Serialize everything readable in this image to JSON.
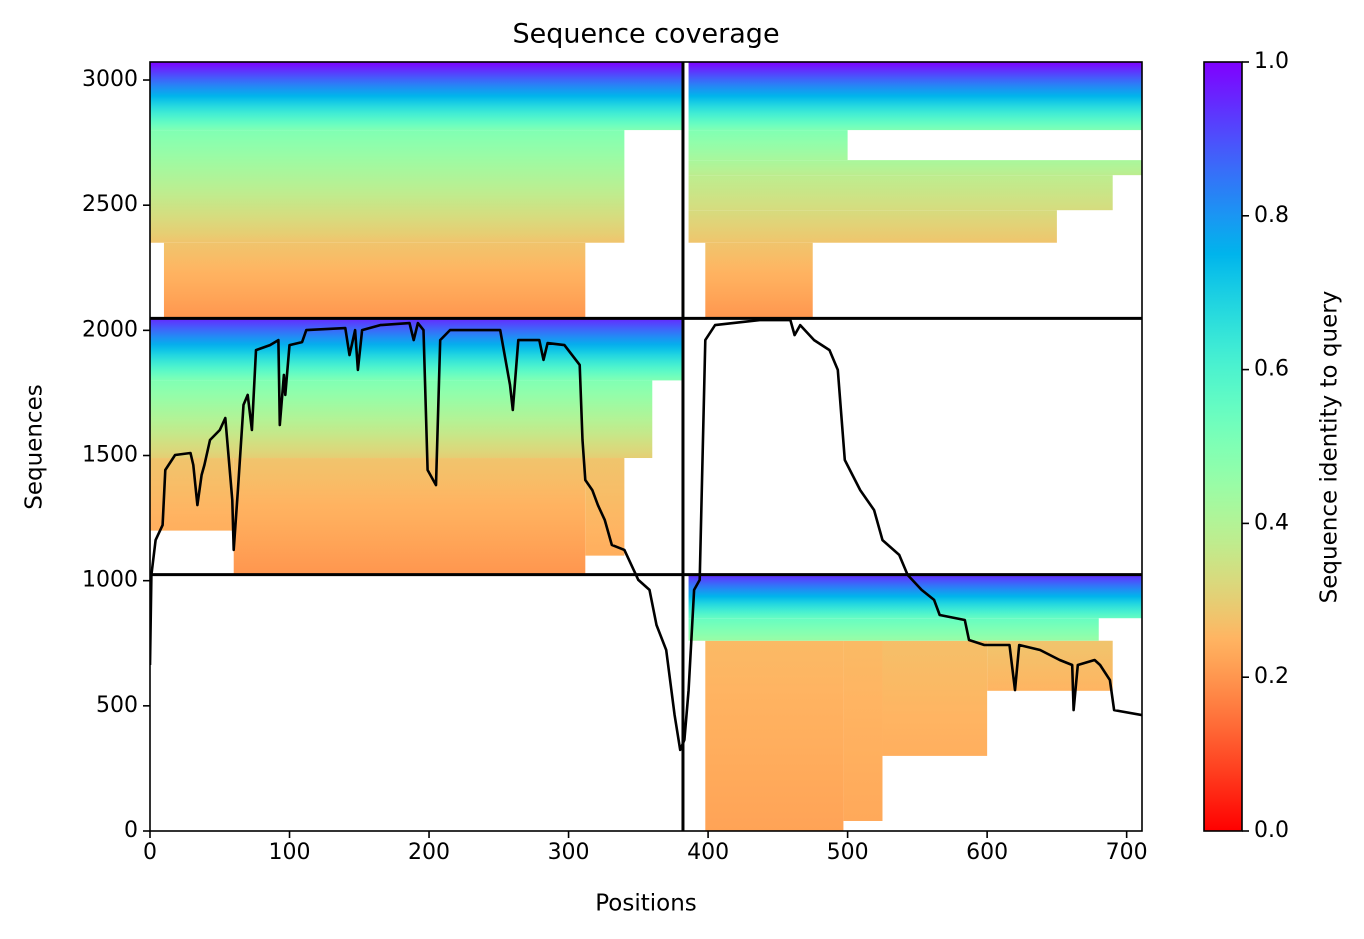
{
  "chart_data": {
    "type": "msa_coverage",
    "title": "Sequence coverage",
    "x_label": "Positions",
    "y_label": "Sequences",
    "xlim": [
      0,
      711
    ],
    "ylim": [
      0,
      3072
    ],
    "xticks": [
      0,
      100,
      200,
      300,
      400,
      500,
      600,
      700
    ],
    "yticks": [
      0,
      500,
      1000,
      1500,
      2000,
      2500,
      3000
    ],
    "colormap": "rainbow_r",
    "colorbar": {
      "label": "Sequence identity to query",
      "lim": [
        0,
        1
      ],
      "ticks": [
        {
          "value": 0,
          "label": "0.0"
        },
        0.2,
        0.4,
        0.6,
        0.8,
        {
          "value": 1,
          "label": "1.0"
        }
      ]
    },
    "separators": {
      "x": [
        382
      ],
      "y": [
        1024,
        2048
      ],
      "color": "#000000"
    },
    "blocks": [
      {
        "x": [
          398,
          497
        ],
        "y": [
          0,
          760
        ],
        "identity": [
          0.22,
          0.26
        ]
      },
      {
        "x": [
          497,
          525
        ],
        "y": [
          40,
          760
        ],
        "identity": [
          0.23,
          0.26
        ]
      },
      {
        "x": [
          525,
          600
        ],
        "y": [
          300,
          760
        ],
        "identity": [
          0.24,
          0.27
        ]
      },
      {
        "x": [
          600,
          690
        ],
        "y": [
          560,
          760
        ],
        "identity": [
          0.25,
          0.28
        ]
      },
      {
        "x": [
          386,
          680
        ],
        "y": [
          760,
          850
        ],
        "identity": [
          0.45,
          0.55
        ]
      },
      {
        "x": [
          386,
          711
        ],
        "y": [
          850,
          1024
        ],
        "identity": [
          0.55,
          0.95
        ]
      },
      {
        "x": [
          60,
          312
        ],
        "y": [
          1024,
          1490
        ],
        "identity": [
          0.2,
          0.28
        ]
      },
      {
        "x": [
          0,
          60
        ],
        "y": [
          1200,
          1490
        ],
        "identity": [
          0.24,
          0.28
        ]
      },
      {
        "x": [
          312,
          340
        ],
        "y": [
          1100,
          1490
        ],
        "identity": [
          0.24,
          0.28
        ]
      },
      {
        "x": [
          0,
          360
        ],
        "y": [
          1490,
          1800
        ],
        "identity": [
          0.3,
          0.5
        ]
      },
      {
        "x": [
          0,
          382
        ],
        "y": [
          1800,
          2048
        ],
        "identity": [
          0.5,
          0.95
        ]
      },
      {
        "x": [
          10,
          312
        ],
        "y": [
          2048,
          2350
        ],
        "identity": [
          0.2,
          0.28
        ]
      },
      {
        "x": [
          0,
          340
        ],
        "y": [
          2350,
          2800
        ],
        "identity": [
          0.28,
          0.5
        ]
      },
      {
        "x": [
          0,
          382
        ],
        "y": [
          2800,
          3072
        ],
        "identity": [
          0.5,
          1
        ]
      },
      {
        "x": [
          398,
          475
        ],
        "y": [
          2048,
          2350
        ],
        "identity": [
          0.2,
          0.28
        ]
      },
      {
        "x": [
          386,
          650
        ],
        "y": [
          2350,
          2480
        ],
        "identity": [
          0.28,
          0.33
        ]
      },
      {
        "x": [
          386,
          690
        ],
        "y": [
          2480,
          2620
        ],
        "identity": [
          0.33,
          0.38
        ]
      },
      {
        "x": [
          386,
          711
        ],
        "y": [
          2620,
          2680
        ],
        "identity": [
          0.38,
          0.42
        ]
      },
      {
        "x": [
          386,
          500
        ],
        "y": [
          2680,
          2800
        ],
        "identity": [
          0.42,
          0.5
        ]
      },
      {
        "x": [
          386,
          711
        ],
        "y": [
          2800,
          3072
        ],
        "identity": [
          0.5,
          1
        ]
      }
    ],
    "line": {
      "color": "#000000",
      "x": [
        0,
        1,
        4,
        9,
        11,
        18,
        29,
        31,
        34,
        37,
        39,
        43,
        50,
        54,
        59,
        60,
        63,
        67,
        70,
        73,
        76,
        86,
        92,
        93,
        96,
        97,
        100,
        109,
        112,
        140,
        143,
        147,
        149,
        152,
        165,
        186,
        189,
        192,
        196,
        199,
        205,
        208,
        215,
        251,
        258,
        260,
        264,
        279,
        282,
        285,
        297,
        308,
        310,
        312,
        317,
        321,
        326,
        331,
        340,
        350,
        358,
        363,
        370,
        376,
        380,
        383,
        386,
        390,
        394,
        398,
        405,
        437,
        459,
        462,
        466,
        476,
        487,
        493,
        498,
        509,
        519,
        525,
        537,
        543,
        553,
        562,
        566,
        584,
        587,
        598,
        616,
        620,
        623,
        638,
        652,
        661,
        662,
        665,
        677,
        681,
        688,
        691,
        711
      ],
      "values": [
        663,
        1023,
        1162,
        1222,
        1442,
        1502,
        1510,
        1462,
        1302,
        1422,
        1462,
        1562,
        1602,
        1650,
        1322,
        1123,
        1362,
        1702,
        1742,
        1602,
        1921,
        1941,
        1961,
        1622,
        1822,
        1742,
        1941,
        1953,
        2001,
        2009,
        1901,
        2001,
        1842,
        2001,
        2021,
        2029,
        1961,
        2029,
        2001,
        1442,
        1382,
        1961,
        2001,
        2001,
        1782,
        1682,
        1961,
        1961,
        1882,
        1949,
        1941,
        1862,
        1562,
        1402,
        1362,
        1302,
        1242,
        1143,
        1123,
        1003,
        963,
        823,
        723,
        463,
        324,
        364,
        563,
        963,
        1003,
        1961,
        2021,
        2041,
        2041,
        1981,
        2021,
        1961,
        1921,
        1842,
        1482,
        1362,
        1282,
        1162,
        1103,
        1023,
        963,
        923,
        863,
        843,
        763,
        743,
        743,
        563,
        743,
        723,
        683,
        663,
        483,
        663,
        683,
        663,
        603,
        483,
        463
      ]
    }
  }
}
